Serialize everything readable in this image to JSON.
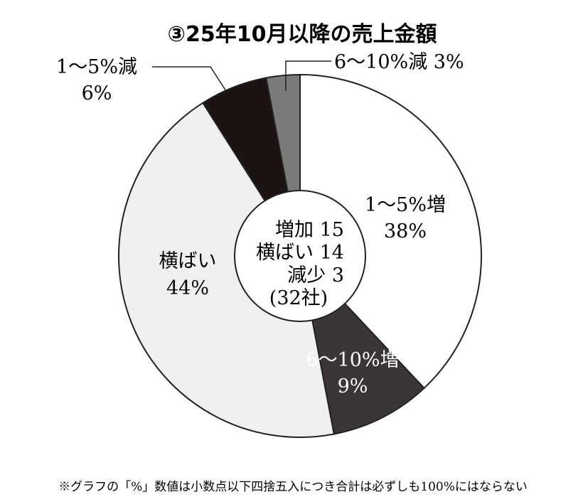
{
  "chart_data": {
    "type": "pie",
    "title": "③25年10月以降の売上金額",
    "start": "top",
    "direction": "clockwise",
    "slices": [
      {
        "label": "1〜5%増",
        "value_label": "38%",
        "value": 38,
        "color": "#ffffff",
        "text_color": "#222222"
      },
      {
        "label": "6〜10%増",
        "value_label": "9%",
        "value": 9,
        "color": "#3b3535",
        "text_color": "#ffffff"
      },
      {
        "label": "横ばい",
        "value_label": "44%",
        "value": 44,
        "color": "#f0f0f0",
        "text_color": "#222222"
      },
      {
        "label": "1〜5%減",
        "value_label": "6%",
        "value": 6,
        "color": "#1c1212",
        "text_color": "#222222"
      },
      {
        "label": "6〜10%減",
        "value_label": "3%",
        "value": 3,
        "color": "#7a7a7a",
        "text_color": "#222222"
      }
    ],
    "center": {
      "lines": [
        "増加 15",
        "横ばい 14",
        "減少 3",
        "(32社)"
      ]
    },
    "callouts": {
      "one_to_five_decrease": {
        "line1": "1〜5%減",
        "line2": "6%"
      },
      "six_to_ten_decrease": {
        "text": "6〜10%減 3%"
      }
    },
    "footnote": "※グラフの「%」数値は小数点以下四捨五入につき合計は必ずしも100%にはならない"
  }
}
